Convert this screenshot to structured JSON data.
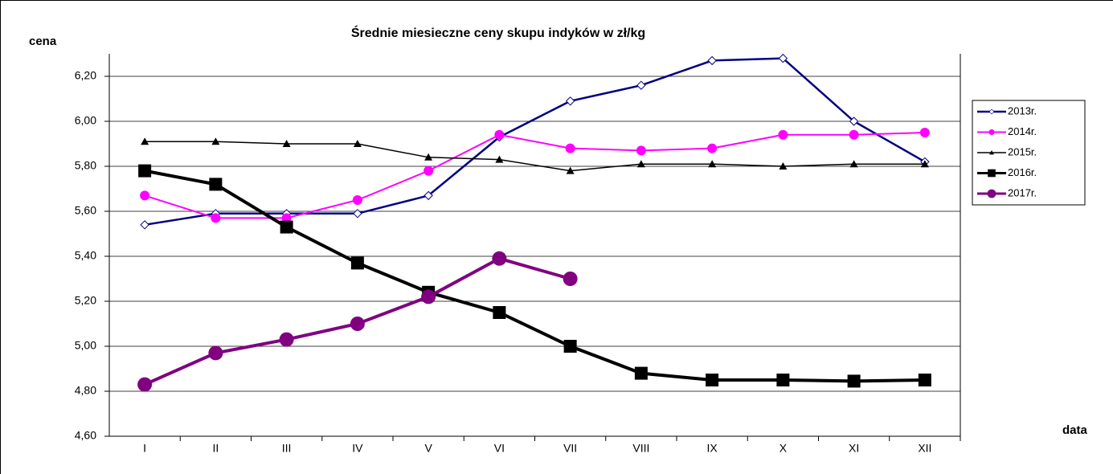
{
  "chart_data": {
    "type": "line",
    "title": "Średnie miesieczne ceny skupu indyków w zł/kg",
    "y_label": "cena",
    "x_label": "data",
    "categories": [
      "I",
      "II",
      "III",
      "IV",
      "V",
      "VI",
      "VII",
      "VIII",
      "IX",
      "X",
      "XI",
      "XII"
    ],
    "series": [
      {
        "name": "2013r.",
        "color": "#000080",
        "values": [
          5.54,
          5.59,
          5.59,
          5.59,
          5.67,
          5.93,
          6.09,
          6.16,
          6.27,
          6.28,
          6.0,
          5.82
        ]
      },
      {
        "name": "2014r.",
        "color": "#ff00ff",
        "values": [
          5.67,
          5.57,
          5.57,
          5.65,
          5.78,
          5.94,
          5.88,
          5.87,
          5.88,
          5.94,
          5.94,
          5.95
        ]
      },
      {
        "name": "2015r.",
        "color": "#000000",
        "values": [
          5.91,
          5.91,
          5.9,
          5.9,
          5.84,
          5.83,
          5.78,
          5.81,
          5.81,
          5.8,
          5.81,
          5.81
        ]
      },
      {
        "name": "2016r.",
        "color": "#000000",
        "values": [
          5.78,
          5.72,
          5.53,
          5.37,
          5.24,
          5.15,
          5.0,
          4.88,
          4.85,
          4.85,
          4.845,
          4.85
        ]
      },
      {
        "name": "2017r.",
        "color": "#800080",
        "values": [
          4.83,
          4.97,
          5.03,
          5.1,
          5.22,
          5.39,
          5.3,
          null,
          null,
          null,
          null,
          null
        ]
      }
    ],
    "ylim": [
      4.6,
      6.3
    ],
    "yticks": [
      {
        "value": 4.6,
        "label": "4,60"
      },
      {
        "value": 4.8,
        "label": "4,80"
      },
      {
        "value": 5.0,
        "label": "5,00"
      },
      {
        "value": 5.2,
        "label": "5,20"
      },
      {
        "value": 5.4,
        "label": "5,40"
      },
      {
        "value": 5.6,
        "label": "5,60"
      },
      {
        "value": 5.8,
        "label": "5,80"
      },
      {
        "value": 6.0,
        "label": "6,00"
      },
      {
        "value": 6.2,
        "label": "6,20"
      }
    ],
    "grid": true,
    "legend": "right"
  }
}
